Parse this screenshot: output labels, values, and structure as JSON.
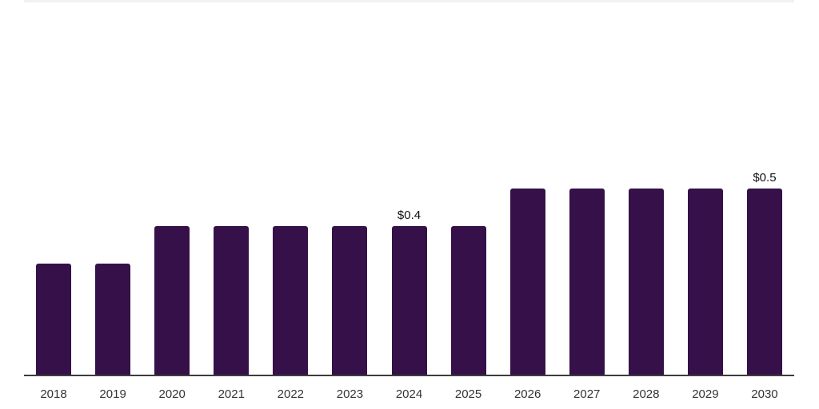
{
  "chart_data": {
    "type": "bar",
    "title": "",
    "xlabel": "",
    "ylabel": "",
    "categories": [
      "2018",
      "2019",
      "2020",
      "2021",
      "2022",
      "2023",
      "2024",
      "2025",
      "2026",
      "2027",
      "2028",
      "2029",
      "2030"
    ],
    "values": [
      0.3,
      0.3,
      0.4,
      0.4,
      0.4,
      0.4,
      0.4,
      0.4,
      0.5,
      0.5,
      0.5,
      0.5,
      0.5
    ],
    "data_labels": [
      "",
      "",
      "",
      "",
      "",
      "",
      "$0.4",
      "",
      "",
      "",
      "",
      "",
      "$0.5"
    ],
    "ylim": [
      0,
      0.55
    ],
    "grid": false,
    "legend": false,
    "bar_color": "#351049",
    "axis_line_color": "#3d3d3d",
    "top_rule_color": "#f2f2f2",
    "data_label_color": "#111111",
    "tick_label_color": "#333333"
  }
}
